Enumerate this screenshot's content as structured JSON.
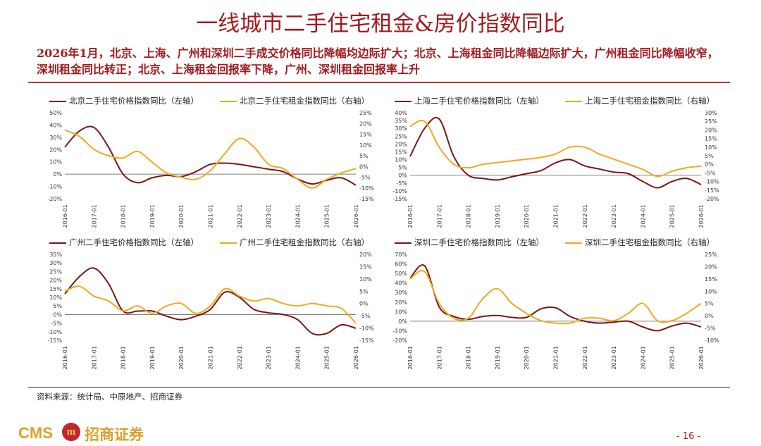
{
  "header": {
    "title": "一线城市二手住宅租金&房价指数同比",
    "subtitle": "2026年1月，北京、上海、广州和深圳二手成交价格同比降幅均边际扩大；北京、上海租金同比降幅边际扩大，广州租金同比降幅收窄，深圳租金同比转正；北京、上海租金回报率下降，广州、深圳租金回报率上升"
  },
  "footer": {
    "source": "资料来源：统计局、中原地产、招商证券",
    "logo_text": "CMS",
    "logo_badge": "m",
    "logo_cn": "招商证券",
    "page": "- 16 -"
  },
  "colors": {
    "price": "#7b1416",
    "rent": "#f0a91c",
    "zero": "#555555"
  },
  "chart_data": [
    {
      "type": "line",
      "city": "北京",
      "x": [
        "2016-01",
        "2016-07",
        "2017-01",
        "2017-07",
        "2018-01",
        "2018-07",
        "2019-01",
        "2019-07",
        "2020-01",
        "2020-07",
        "2021-01",
        "2021-07",
        "2022-01",
        "2022-07",
        "2023-01",
        "2023-07",
        "2024-01",
        "2024-07",
        "2025-01",
        "2025-07",
        "2026-01"
      ],
      "x_ticks": [
        "2016-01",
        "2017-01",
        "2018-01",
        "2019-01",
        "2020-01",
        "2021-01",
        "2022-01",
        "2023-01",
        "2024-01",
        "2025-01",
        "2026-01"
      ],
      "series": [
        {
          "name": "北京二手住宅价格指数同比（左轴）",
          "axis": "left",
          "values": [
            22,
            35,
            38,
            22,
            0,
            -7,
            -3,
            -1,
            -2,
            2,
            8,
            9,
            8,
            6,
            4,
            2,
            -4,
            -8,
            -5,
            -3,
            -9
          ]
        },
        {
          "name": "北京二手住宅租金指数同比（右轴）",
          "axis": "right",
          "values": [
            17,
            14,
            8,
            5,
            4,
            7,
            2,
            -3,
            -5,
            -6,
            -2,
            6,
            13,
            9,
            1,
            -1,
            -6,
            -10,
            -6,
            -3,
            -1
          ]
        }
      ],
      "left_axis": {
        "ticks": [
          "50%",
          "40%",
          "30%",
          "20%",
          "10%",
          "0%",
          "-10%",
          "-20%"
        ],
        "range": [
          -20,
          50
        ]
      },
      "right_axis": {
        "ticks": [
          "25%",
          "20%",
          "15%",
          "10%",
          "5%",
          "0%",
          "-5%",
          "-10%",
          "-15%"
        ],
        "range": [
          -15,
          25
        ]
      }
    },
    {
      "type": "line",
      "city": "上海",
      "x": [
        "2016-01",
        "2016-07",
        "2017-01",
        "2017-07",
        "2018-01",
        "2018-07",
        "2019-01",
        "2019-07",
        "2020-01",
        "2020-07",
        "2021-01",
        "2021-07",
        "2022-01",
        "2022-07",
        "2023-01",
        "2023-07",
        "2024-01",
        "2024-07",
        "2025-01",
        "2025-07",
        "2026-01"
      ],
      "x_ticks": [
        "2016-01",
        "2017-01",
        "2018-01",
        "2019-01",
        "2020-01",
        "2021-01",
        "2022-01",
        "2023-01",
        "2024-01",
        "2025-01",
        "2026-01"
      ],
      "series": [
        {
          "name": "上海二手住宅价格指数同比（左轴）",
          "axis": "left",
          "values": [
            12,
            30,
            36,
            12,
            0,
            -2,
            -3,
            -1,
            1,
            3,
            8,
            10,
            6,
            4,
            2,
            1,
            -4,
            -8,
            -4,
            -2,
            -6
          ]
        },
        {
          "name": "上海二手住宅租金指数同比（右轴）",
          "axis": "right",
          "values": [
            22,
            25,
            10,
            0,
            -2,
            0,
            1,
            2,
            3,
            4,
            6,
            10,
            10,
            6,
            3,
            0,
            -3,
            -7,
            -4,
            -2,
            -1
          ]
        }
      ],
      "left_axis": {
        "ticks": [
          "40%",
          "35%",
          "30%",
          "25%",
          "20%",
          "15%",
          "10%",
          "5%",
          "0%",
          "-5%",
          "-10%",
          "-15%"
        ],
        "range": [
          -15,
          40
        ]
      },
      "right_axis": {
        "ticks": [
          "30%",
          "25%",
          "20%",
          "15%",
          "10%",
          "5%",
          "0%",
          "-5%",
          "-10%",
          "-15%",
          "-20%"
        ],
        "range": [
          -20,
          30
        ]
      }
    },
    {
      "type": "line",
      "city": "广州",
      "x": [
        "2016-01",
        "2016-07",
        "2017-01",
        "2017-07",
        "2018-01",
        "2018-07",
        "2019-01",
        "2019-07",
        "2020-01",
        "2020-07",
        "2021-01",
        "2021-07",
        "2022-01",
        "2022-07",
        "2023-01",
        "2023-07",
        "2024-01",
        "2024-07",
        "2025-01",
        "2025-07",
        "2026-01"
      ],
      "x_ticks": [
        "2016-01",
        "2017-01",
        "2018-01",
        "2019-01",
        "2020-01",
        "2021-01",
        "2022-01",
        "2023-01",
        "2024-01",
        "2025-01",
        "2026-01"
      ],
      "series": [
        {
          "name": "广州二手住宅价格指数同比（左轴）",
          "axis": "left",
          "values": [
            12,
            22,
            27,
            18,
            2,
            2,
            2,
            -1,
            -3,
            -1,
            3,
            13,
            10,
            3,
            1,
            0,
            -3,
            -11,
            -11,
            -6,
            -8
          ]
        },
        {
          "name": "广州二手住宅租金指数同比（右轴）",
          "axis": "right",
          "values": [
            5,
            7,
            3,
            1,
            -3,
            -1,
            -4,
            -1,
            0,
            -4,
            -1,
            6,
            3,
            1,
            2,
            0,
            -1,
            0,
            -1,
            -2,
            -8
          ]
        }
      ],
      "left_axis": {
        "ticks": [
          "35%",
          "30%",
          "25%",
          "20%",
          "15%",
          "10%",
          "5%",
          "0%",
          "-5%",
          "-10%",
          "-15%"
        ],
        "range": [
          -15,
          35
        ]
      },
      "right_axis": {
        "ticks": [
          "20%",
          "15%",
          "10%",
          "5%",
          "0%",
          "-5%",
          "-10%",
          "-15%"
        ],
        "range": [
          -15,
          20
        ]
      }
    },
    {
      "type": "line",
      "city": "深圳",
      "x": [
        "2016-01",
        "2016-07",
        "2017-01",
        "2017-07",
        "2018-01",
        "2018-07",
        "2019-01",
        "2019-07",
        "2020-01",
        "2020-07",
        "2021-01",
        "2021-07",
        "2022-01",
        "2022-07",
        "2023-01",
        "2023-07",
        "2024-01",
        "2024-07",
        "2025-01",
        "2025-07",
        "2026-01"
      ],
      "x_ticks": [
        "2016-01",
        "2017-01",
        "2018-01",
        "2019-01",
        "2020-01",
        "2021-01",
        "2022-01",
        "2023-01",
        "2024-01",
        "2025-01",
        "2026-01"
      ],
      "series": [
        {
          "name": "深圳二手住宅价格指数同比（左轴）",
          "axis": "left",
          "values": [
            45,
            58,
            15,
            5,
            2,
            5,
            6,
            4,
            4,
            13,
            14,
            5,
            0,
            -2,
            -1,
            0,
            -6,
            -10,
            -5,
            -2,
            -6
          ]
        },
        {
          "name": "深圳二手住宅租金指数同比（右轴）",
          "axis": "right",
          "values": [
            15,
            18,
            5,
            -1,
            -1,
            7,
            11,
            5,
            1,
            -2,
            -3,
            -3,
            -1,
            -1,
            -2,
            1,
            5,
            -2,
            -2,
            1,
            5
          ]
        }
      ],
      "left_axis": {
        "ticks": [
          "70%",
          "60%",
          "50%",
          "40%",
          "30%",
          "20%",
          "10%",
          "0%",
          "-10%",
          "-20%"
        ],
        "range": [
          -20,
          70
        ]
      },
      "right_axis": {
        "ticks": [
          "25%",
          "20%",
          "15%",
          "10%",
          "5%",
          "0%",
          "-5%",
          "-10%"
        ],
        "range": [
          -10,
          25
        ]
      }
    }
  ]
}
